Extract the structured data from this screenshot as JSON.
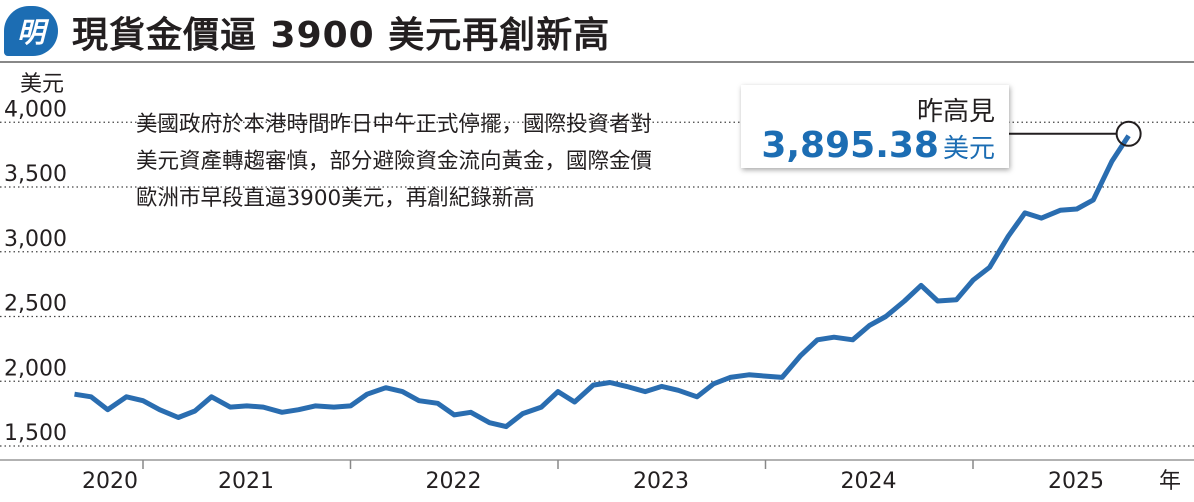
{
  "header": {
    "logo": "明",
    "title": "現貨金價逼 3900 美元再創新高"
  },
  "note": "美國政府於本港時間昨日中午正式停擺，國際投資者對美元資產轉趨審慎，部分避險資金流向黃金，國際金價歐洲市早段直逼3900美元，再創紀錄新高",
  "callout": {
    "label": "昨高見",
    "value": "3,895.38",
    "unit": "美元"
  },
  "colors": {
    "line": "#2a6db0",
    "accent": "#1c6db3"
  },
  "chart_data": {
    "type": "line",
    "title": "現貨金價逼 3900 美元再創新高",
    "ylabel": "美元",
    "xlabel": "年",
    "ylim": [
      1500,
      4000
    ],
    "yticks": [
      1500,
      2000,
      2500,
      3000,
      3500,
      4000
    ],
    "ytick_labels": [
      "1,500",
      "2,000",
      "2,500",
      "3,000",
      "3,500",
      "4,000"
    ],
    "xticks": [
      2020,
      2021,
      2022,
      2023,
      2024,
      2025
    ],
    "grid": true,
    "series": [
      {
        "name": "現貨金價",
        "x": [
          2020.67,
          2020.75,
          2020.83,
          2020.92,
          2021.0,
          2021.08,
          2021.17,
          2021.25,
          2021.33,
          2021.42,
          2021.5,
          2021.58,
          2021.67,
          2021.75,
          2021.83,
          2021.92,
          2022.0,
          2022.08,
          2022.17,
          2022.25,
          2022.33,
          2022.42,
          2022.5,
          2022.58,
          2022.67,
          2022.75,
          2022.83,
          2022.92,
          2023.0,
          2023.08,
          2023.17,
          2023.25,
          2023.33,
          2023.42,
          2023.5,
          2023.58,
          2023.67,
          2023.75,
          2023.83,
          2023.92,
          2024.0,
          2024.08,
          2024.17,
          2024.25,
          2024.33,
          2024.42,
          2024.5,
          2024.58,
          2024.67,
          2024.75,
          2024.83,
          2024.92,
          2025.0,
          2025.08,
          2025.17,
          2025.25,
          2025.33,
          2025.42,
          2025.5,
          2025.58,
          2025.67,
          2025.75
        ],
        "values": [
          1900,
          1880,
          1780,
          1880,
          1850,
          1780,
          1720,
          1770,
          1880,
          1800,
          1810,
          1800,
          1760,
          1780,
          1810,
          1800,
          1810,
          1900,
          1950,
          1920,
          1850,
          1830,
          1740,
          1760,
          1680,
          1650,
          1750,
          1800,
          1920,
          1840,
          1970,
          1990,
          1960,
          1920,
          1960,
          1930,
          1880,
          1980,
          2030,
          2050,
          2040,
          2030,
          2200,
          2320,
          2340,
          2320,
          2430,
          2500,
          2620,
          2740,
          2620,
          2630,
          2780,
          2880,
          3120,
          3300,
          3260,
          3320,
          3330,
          3400,
          3700,
          3895.38
        ]
      }
    ]
  }
}
